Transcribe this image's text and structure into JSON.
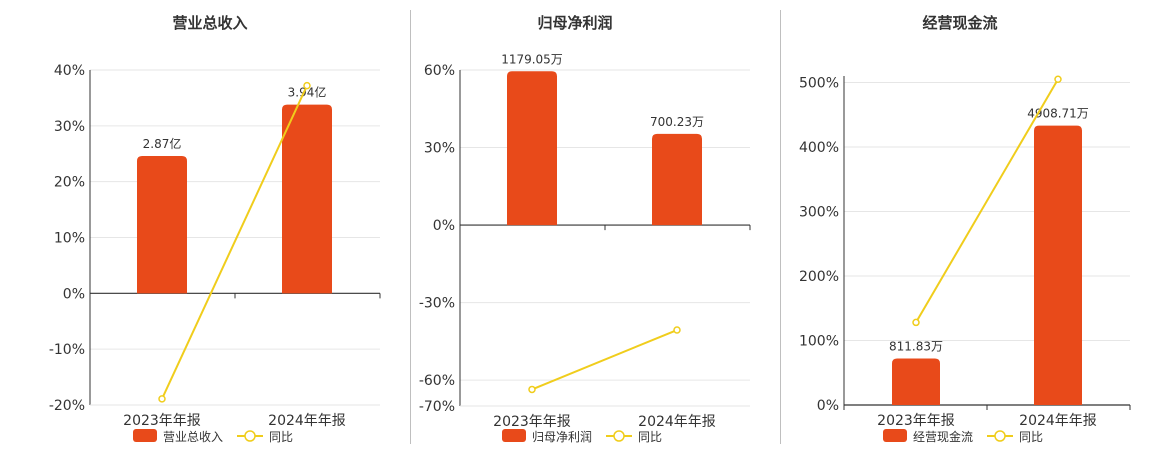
{
  "colors": {
    "bar": "#e84a1a",
    "line": "#f0cd1c",
    "grid": "#e6e6e6",
    "axis": "#333333",
    "text": "#333333"
  },
  "chart_data": [
    {
      "type": "bar",
      "title": "营业总收入",
      "categories": [
        "2023年年报",
        "2024年年报"
      ],
      "bar_values": [
        24.6,
        33.8
      ],
      "bar_labels": [
        "2.87亿",
        "3.94亿"
      ],
      "line_values": [
        -18.9,
        37.2
      ],
      "y_ticks": [
        "40%",
        "30%",
        "20%",
        "10%",
        "0%",
        "-10%",
        "-20%"
      ],
      "ylim": [
        -20,
        40
      ],
      "legend": {
        "bar": "营业总收入",
        "line": "同比"
      }
    },
    {
      "type": "bar",
      "title": "归母净利润",
      "categories": [
        "2023年年报",
        "2024年年报"
      ],
      "bar_values": [
        59.5,
        35.3
      ],
      "bar_labels": [
        "1179.05万",
        "700.23万"
      ],
      "line_values": [
        -63.6,
        -40.6
      ],
      "y_ticks": [
        "60%",
        "30%",
        "0%",
        "-30%",
        "-60%",
        "-70%"
      ],
      "y_tick_values": [
        60,
        30,
        0,
        -30,
        -60,
        -70
      ],
      "ylim": [
        -70,
        60
      ],
      "legend": {
        "bar": "归母净利润",
        "line": "同比"
      }
    },
    {
      "type": "bar",
      "title": "经营现金流",
      "categories": [
        "2023年年报",
        "2024年年报"
      ],
      "bar_values": [
        72,
        433
      ],
      "bar_labels": [
        "811.83万",
        "4908.71万"
      ],
      "line_values": [
        128,
        505
      ],
      "y_ticks": [
        "500%",
        "400%",
        "300%",
        "200%",
        "100%",
        "0%"
      ],
      "ylim": [
        0,
        510
      ],
      "legend": {
        "bar": "经营现金流",
        "line": "同比"
      }
    }
  ]
}
